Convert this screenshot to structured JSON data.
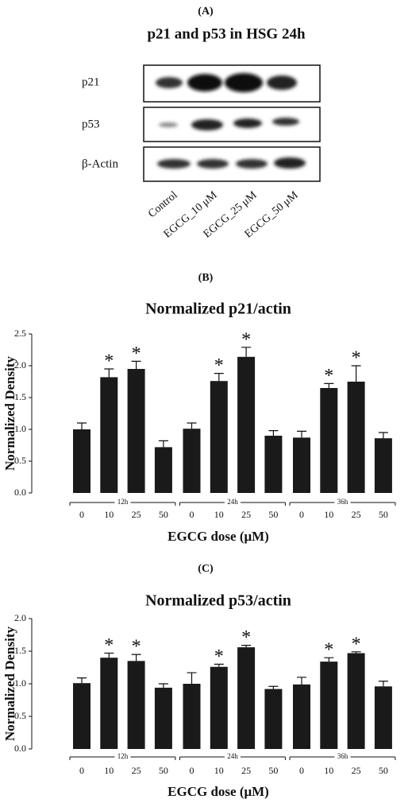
{
  "blot": {
    "panel_label": "(A)",
    "title": "p21 and p53 in HSG 24h",
    "rows": [
      "p21",
      "p53",
      "β-Actin"
    ],
    "lanes": [
      "Control",
      "EGCG_10 μM",
      "EGCG_25 μM",
      "EGCG_50 μM"
    ]
  },
  "chart_data": [
    {
      "type": "bar",
      "panel_label": "(B)",
      "title": "Normalized p21/actin",
      "y_label": "Normalized Density",
      "x_label": "EGCG dose (μM)",
      "groups": [
        "12h",
        "24h",
        "36h"
      ],
      "categories": [
        "0",
        "10",
        "25",
        "50",
        "0",
        "10",
        "25",
        "50",
        "0",
        "10",
        "25",
        "50"
      ],
      "values": [
        1.0,
        1.82,
        1.95,
        0.72,
        1.01,
        1.76,
        2.14,
        0.9,
        0.87,
        1.65,
        1.75,
        0.86
      ],
      "errors": [
        0.1,
        0.13,
        0.12,
        0.1,
        0.09,
        0.12,
        0.15,
        0.08,
        0.1,
        0.07,
        0.25,
        0.09
      ],
      "significance": [
        null,
        "*",
        "*",
        null,
        null,
        "*",
        "*",
        null,
        null,
        "*",
        "*",
        null
      ],
      "color": "#1a1a1a",
      "ylim": [
        0,
        2.5
      ],
      "yticks": [
        {
          "value": 0,
          "label": "0.0"
        },
        0.5,
        {
          "value": 1,
          "label": "1.0"
        },
        1.5,
        {
          "value": 2,
          "label": "2.0"
        },
        2.5
      ]
    },
    {
      "type": "bar",
      "panel_label": "(C)",
      "title": "Normalized p53/actin",
      "y_label": "Normalized Density",
      "x_label": "EGCG dose (μM)",
      "groups": [
        "12h",
        "24h",
        "36h"
      ],
      "categories": [
        "0",
        "10",
        "25",
        "50",
        "0",
        "10",
        "25",
        "50",
        "0",
        "10",
        "25",
        "50"
      ],
      "values": [
        1.01,
        1.4,
        1.35,
        0.94,
        1.0,
        1.26,
        1.56,
        0.92,
        0.99,
        1.34,
        1.47,
        0.96
      ],
      "errors": [
        0.08,
        0.07,
        0.1,
        0.06,
        0.17,
        0.04,
        0.03,
        0.04,
        0.11,
        0.06,
        0.02,
        0.08
      ],
      "significance": [
        null,
        "*",
        "*",
        null,
        null,
        "*",
        "*",
        null,
        null,
        "*",
        "*",
        null
      ],
      "color": "#1a1a1a",
      "ylim": [
        0,
        2
      ],
      "yticks": [
        {
          "value": 0,
          "label": "0.0"
        },
        0.5,
        {
          "value": 1,
          "label": "1.0"
        },
        1.5,
        {
          "value": 2,
          "label": "2.0"
        }
      ]
    }
  ]
}
